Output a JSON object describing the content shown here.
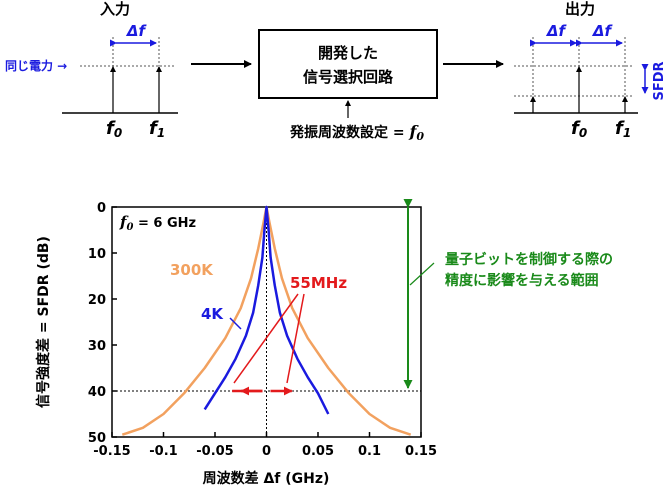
{
  "diagram": {
    "input_label": "入力",
    "output_label": "出力",
    "same_power_label": "同じ電力 →",
    "delta_f": "Δf",
    "f0": "f",
    "f0_sub": "0",
    "f1": "f",
    "f1_sub": "1",
    "block_line1": "開発した",
    "block_line2": "信号選択回路",
    "setting_label": "発振周波数設定 = ",
    "sfdr_label": "SFDR"
  },
  "chart_data": {
    "type": "line",
    "xlabel": "周波数差 Δf (GHz)",
    "ylabel": "信号強度差 = SFDR (dB)",
    "xlim": [
      -0.15,
      0.15
    ],
    "ylim": [
      0,
      50
    ],
    "y_inverted": true,
    "x_ticks": [
      "-0.15",
      "-0.1",
      "-0.05",
      "0",
      "0.05",
      "0.1",
      "0.15"
    ],
    "y_ticks": [
      "0",
      "10",
      "20",
      "30",
      "40",
      "50"
    ],
    "grid": false,
    "series": [
      {
        "name": "300K",
        "color": "#f2a15f",
        "x": [
          -0.14,
          -0.12,
          -0.1,
          -0.08,
          -0.06,
          -0.04,
          -0.025,
          -0.015,
          -0.008,
          -0.003,
          0,
          0.003,
          0.008,
          0.015,
          0.025,
          0.04,
          0.06,
          0.08,
          0.1,
          0.12,
          0.14
        ],
        "y": [
          49.5,
          48,
          45,
          40.5,
          35,
          28.5,
          22,
          15.5,
          9,
          3.5,
          0,
          3.5,
          9,
          15.5,
          22,
          28.5,
          35,
          40.5,
          45,
          48,
          49.5
        ]
      },
      {
        "name": "4K",
        "color": "#1a1adf",
        "x": [
          -0.06,
          -0.05,
          -0.04,
          -0.03,
          -0.02,
          -0.013,
          -0.008,
          -0.004,
          -0.002,
          0,
          0.002,
          0.004,
          0.008,
          0.013,
          0.02,
          0.03,
          0.04,
          0.05,
          0.06
        ],
        "y": [
          44,
          40.5,
          37,
          33,
          28,
          23,
          17,
          11,
          5,
          0,
          5,
          11,
          17,
          23,
          28,
          33,
          37,
          40.5,
          45
        ]
      }
    ],
    "annotations": {
      "condition_label": "f",
      "condition_sub": "0",
      "condition_value": " = 6 GHz",
      "bandwidth_label": "55MHz",
      "level_db": 40,
      "bandwidth_arrow_x": [
        -0.0275,
        0.0275
      ],
      "range_text_line1": "量子ビットを制御する際の",
      "range_text_line2": "精度に影響を与える範囲"
    }
  },
  "colors": {
    "input_blue": "#1a1adf",
    "bandwidth_red": "#e31a1c",
    "range_green": "#1a8a1a",
    "orange_300k": "#f2a15f"
  }
}
